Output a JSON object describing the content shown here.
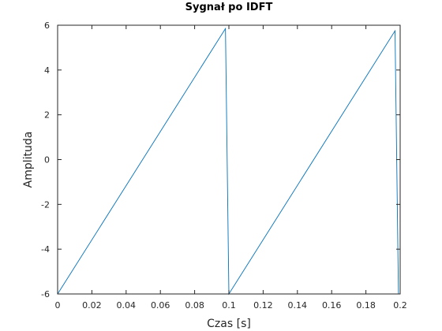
{
  "chart_data": {
    "type": "line",
    "title": "Sygnał po IDFT",
    "xlabel": "Czas [s]",
    "ylabel": "Amplituda",
    "xlim": [
      0,
      0.2
    ],
    "ylim": [
      -6,
      6
    ],
    "xticks": [
      0,
      0.02,
      0.04,
      0.06,
      0.08,
      0.1,
      0.12,
      0.14,
      0.16,
      0.18,
      0.2
    ],
    "xtick_labels": [
      "0",
      "0.02",
      "0.04",
      "0.06",
      "0.08",
      "0.1",
      "0.12",
      "0.14",
      "0.16",
      "0.18",
      "0.2"
    ],
    "yticks": [
      -6,
      -4,
      -2,
      0,
      2,
      4,
      6
    ],
    "ytick_labels": [
      "-6",
      "-4",
      "-2",
      "0",
      "2",
      "4",
      "6"
    ],
    "grid": false,
    "legend": "none",
    "series": [
      {
        "color": "#0072BD",
        "x": [
          0,
          0.098,
          0.1,
          0.197,
          0.199
        ],
        "y": [
          -6,
          5.85,
          -6,
          5.75,
          -6
        ]
      }
    ]
  }
}
